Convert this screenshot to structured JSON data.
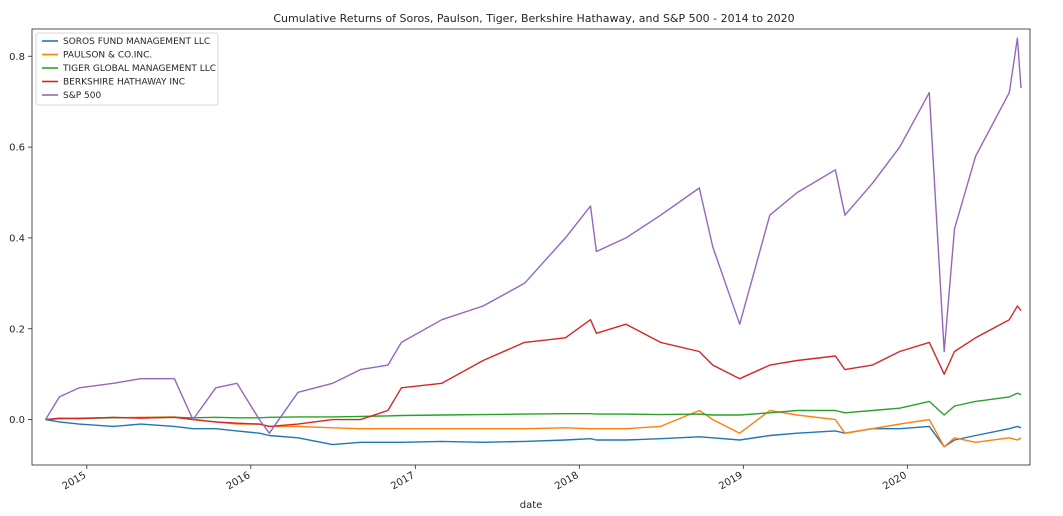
{
  "chart_data": {
    "type": "line",
    "title": "Cumulative Returns of Soros, Paulson, Tiger, Berkshire Hathaway, and S&P 500 - 2014 to 2020",
    "xlabel": "date",
    "ylabel": "",
    "x_ticks": [
      "2015",
      "2016",
      "2017",
      "2018",
      "2019",
      "2020"
    ],
    "y_ticks": [
      "0.0",
      "0.2",
      "0.4",
      "0.6",
      "0.8"
    ],
    "xlim": [
      "2014-09-01",
      "2020-09-30"
    ],
    "ylim": [
      -0.1,
      0.86
    ],
    "grid": false,
    "legend_position": "top-left",
    "x": [
      "2014-10-01",
      "2014-11-01",
      "2014-12-15",
      "2015-03-01",
      "2015-05-01",
      "2015-07-15",
      "2015-08-25",
      "2015-10-15",
      "2015-12-01",
      "2016-01-20",
      "2016-02-11",
      "2016-04-15",
      "2016-07-01",
      "2016-09-01",
      "2016-11-01",
      "2016-12-01",
      "2017-03-01",
      "2017-06-01",
      "2017-09-01",
      "2017-12-01",
      "2018-01-26",
      "2018-02-08",
      "2018-04-15",
      "2018-07-01",
      "2018-09-25",
      "2018-10-25",
      "2018-12-24",
      "2019-03-01",
      "2019-05-01",
      "2019-07-25",
      "2019-08-15",
      "2019-10-15",
      "2019-12-15",
      "2020-02-19",
      "2020-03-23",
      "2020-04-15",
      "2020-06-01",
      "2020-08-15",
      "2020-09-02",
      "2020-09-10"
    ],
    "series": [
      {
        "name": "SOROS FUND MANAGEMENT LLC",
        "color": "#1f77b4",
        "values": [
          0.0,
          -0.005,
          -0.01,
          -0.015,
          -0.01,
          -0.015,
          -0.02,
          -0.02,
          -0.025,
          -0.03,
          -0.035,
          -0.04,
          -0.055,
          -0.05,
          -0.05,
          -0.05,
          -0.048,
          -0.05,
          -0.048,
          -0.045,
          -0.042,
          -0.045,
          -0.045,
          -0.042,
          -0.038,
          -0.04,
          -0.045,
          -0.035,
          -0.03,
          -0.025,
          -0.03,
          -0.02,
          -0.02,
          -0.015,
          -0.06,
          -0.045,
          -0.035,
          -0.02,
          -0.015,
          -0.018
        ]
      },
      {
        "name": "PAULSON & CO.INC.",
        "color": "#ff7f0e",
        "values": [
          0.0,
          0.002,
          0.003,
          0.004,
          0.005,
          0.006,
          0.0,
          -0.005,
          -0.01,
          -0.01,
          -0.015,
          -0.015,
          -0.018,
          -0.02,
          -0.02,
          -0.02,
          -0.02,
          -0.02,
          -0.02,
          -0.018,
          -0.02,
          -0.02,
          -0.02,
          -0.015,
          0.02,
          0.0,
          -0.03,
          0.02,
          0.01,
          0.0,
          -0.03,
          -0.02,
          -0.01,
          0.0,
          -0.06,
          -0.04,
          -0.05,
          -0.04,
          -0.045,
          -0.04
        ]
      },
      {
        "name": "TIGER GLOBAL MANAGEMENT LLC",
        "color": "#2ca02c",
        "values": [
          0.0,
          0.002,
          0.003,
          0.004,
          0.004,
          0.005,
          0.004,
          0.005,
          0.004,
          0.004,
          0.005,
          0.006,
          0.006,
          0.007,
          0.008,
          0.009,
          0.01,
          0.011,
          0.012,
          0.013,
          0.013,
          0.012,
          0.012,
          0.011,
          0.012,
          0.01,
          0.01,
          0.015,
          0.02,
          0.02,
          0.015,
          0.02,
          0.025,
          0.04,
          0.01,
          0.03,
          0.04,
          0.05,
          0.058,
          0.055
        ]
      },
      {
        "name": "BERKSHIRE HATHAWAY INC",
        "color": "#d62728",
        "values": [
          0.0,
          0.003,
          0.002,
          0.005,
          0.003,
          0.005,
          0.0,
          -0.005,
          -0.008,
          -0.01,
          -0.015,
          -0.01,
          0.0,
          0.0,
          0.02,
          0.07,
          0.08,
          0.13,
          0.17,
          0.18,
          0.22,
          0.19,
          0.21,
          0.17,
          0.15,
          0.12,
          0.09,
          0.12,
          0.13,
          0.14,
          0.11,
          0.12,
          0.15,
          0.17,
          0.1,
          0.15,
          0.18,
          0.22,
          0.25,
          0.24
        ]
      },
      {
        "name": "S&P 500",
        "color": "#9467bd",
        "values": [
          0.0,
          0.05,
          0.07,
          0.08,
          0.09,
          0.09,
          0.0,
          0.07,
          0.08,
          0.0,
          -0.03,
          0.06,
          0.08,
          0.11,
          0.12,
          0.17,
          0.22,
          0.25,
          0.3,
          0.4,
          0.47,
          0.37,
          0.4,
          0.45,
          0.51,
          0.38,
          0.21,
          0.45,
          0.5,
          0.55,
          0.45,
          0.52,
          0.6,
          0.72,
          0.15,
          0.42,
          0.58,
          0.72,
          0.84,
          0.73
        ]
      }
    ]
  }
}
